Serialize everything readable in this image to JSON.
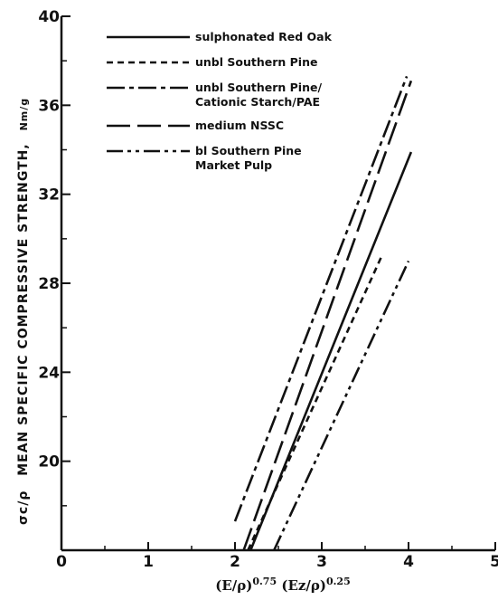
{
  "chart_data": {
    "type": "line",
    "ylabel": {
      "symbol": "σc/ρ",
      "text": "MEAN SPECIFIC COMPRESSIVE STRENGTH,",
      "units": "Nm/g"
    },
    "xlabel": "(E/ρ)0.75 (Ez/ρ)0.25",
    "xlim": [
      0,
      5
    ],
    "ylim": [
      16,
      40
    ],
    "x_ticks": [
      "0",
      "1",
      "2",
      "3",
      "4",
      "5"
    ],
    "y_ticks": [
      "20",
      "24",
      "28",
      "32",
      "36",
      "40"
    ],
    "legend_position": "top-left",
    "series": [
      {
        "name": "sulphonated Red Oak",
        "dash": "solid",
        "points": [
          {
            "x": 2.18,
            "y": 16.0
          },
          {
            "x": 4.03,
            "y": 33.9
          }
        ]
      },
      {
        "name": "unbl Southern Pine",
        "dash": "short-dash",
        "points": [
          {
            "x": 2.15,
            "y": 16.0
          },
          {
            "x": 3.7,
            "y": 29.3
          }
        ]
      },
      {
        "name": "unbl Southern Pine/ Cationic Starch/PAE",
        "dash": "dash-dot",
        "points": [
          {
            "x": 2.0,
            "y": 17.3
          },
          {
            "x": 3.98,
            "y": 37.3
          }
        ]
      },
      {
        "name": "medium NSSC",
        "dash": "long-dash",
        "points": [
          {
            "x": 2.1,
            "y": 16.0
          },
          {
            "x": 4.03,
            "y": 37.1
          }
        ]
      },
      {
        "name": "bl Southern Pine Market Pulp",
        "dash": "dash-dot-dot",
        "points": [
          {
            "x": 2.45,
            "y": 16.0
          },
          {
            "x": 4.0,
            "y": 29.0
          }
        ]
      }
    ]
  }
}
